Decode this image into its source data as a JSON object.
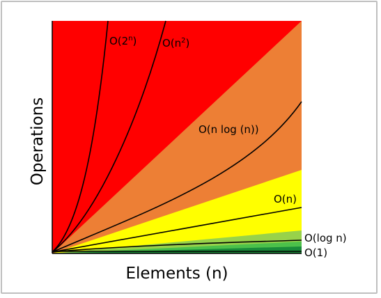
{
  "chart_data": {
    "type": "area",
    "xlabel": "Elements (n)",
    "ylabel": "Operations",
    "grid": false,
    "legend": "none",
    "regions_bottom_to_top": [
      {
        "color": "#1a8c3a"
      },
      {
        "color": "#4cc14a"
      },
      {
        "color": "#98d24a"
      },
      {
        "color": "#ffff00"
      },
      {
        "color": "#ed7f35"
      },
      {
        "color": "#ff0000"
      }
    ],
    "curves": [
      {
        "label": "O(1)",
        "kind": "constant"
      },
      {
        "label": "O(log n)",
        "kind": "log"
      },
      {
        "label": "O(n)",
        "kind": "linear"
      },
      {
        "label": "O(n log (n))",
        "kind": "nlogn"
      },
      {
        "label_base": "O(2",
        "label_sup": "n",
        "label_end": ")",
        "kind": "exponential"
      },
      {
        "label_base": "O(n",
        "label_sup": "2",
        "label_end": ")",
        "kind": "quadratic"
      }
    ]
  }
}
